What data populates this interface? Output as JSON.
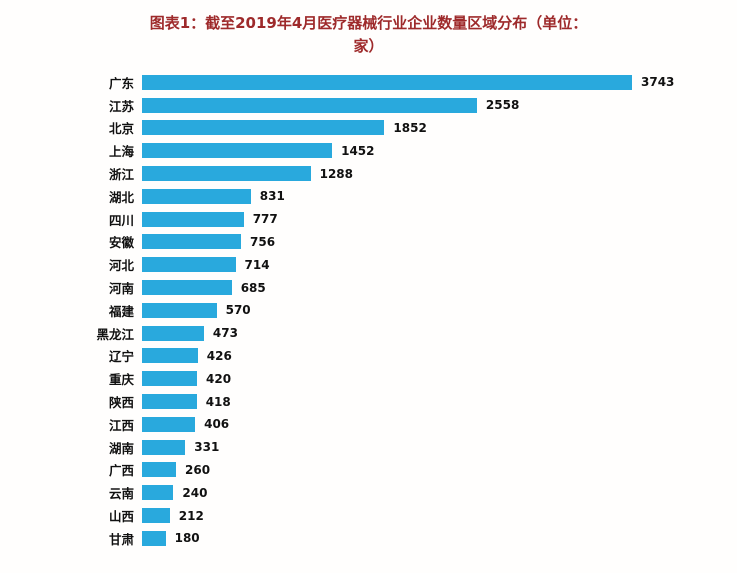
{
  "title": {
    "line1": "图表1：截至2019年4月医疗器械行业企业数量区域分布（单位：",
    "line2": "家）"
  },
  "colors": {
    "bar": "#29a9dd",
    "title": "#9e2a2b",
    "text": "#111111"
  },
  "chart_data": {
    "type": "bar",
    "orientation": "horizontal",
    "title": "图表1：截至2019年4月医疗器械行业企业数量区域分布（单位：家）",
    "unit": "家",
    "categories": [
      "广东",
      "江苏",
      "北京",
      "上海",
      "浙江",
      "湖北",
      "四川",
      "安徽",
      "河北",
      "河南",
      "福建",
      "黑龙江",
      "辽宁",
      "重庆",
      "陕西",
      "江西",
      "湖南",
      "广西",
      "云南",
      "山西",
      "甘肃"
    ],
    "values": [
      3743,
      2558,
      1852,
      1452,
      1288,
      831,
      777,
      756,
      714,
      685,
      570,
      473,
      426,
      420,
      418,
      406,
      331,
      260,
      240,
      212,
      180
    ],
    "xlim": [
      0,
      3743
    ],
    "value_labels": true,
    "grid": false,
    "legend": false
  }
}
